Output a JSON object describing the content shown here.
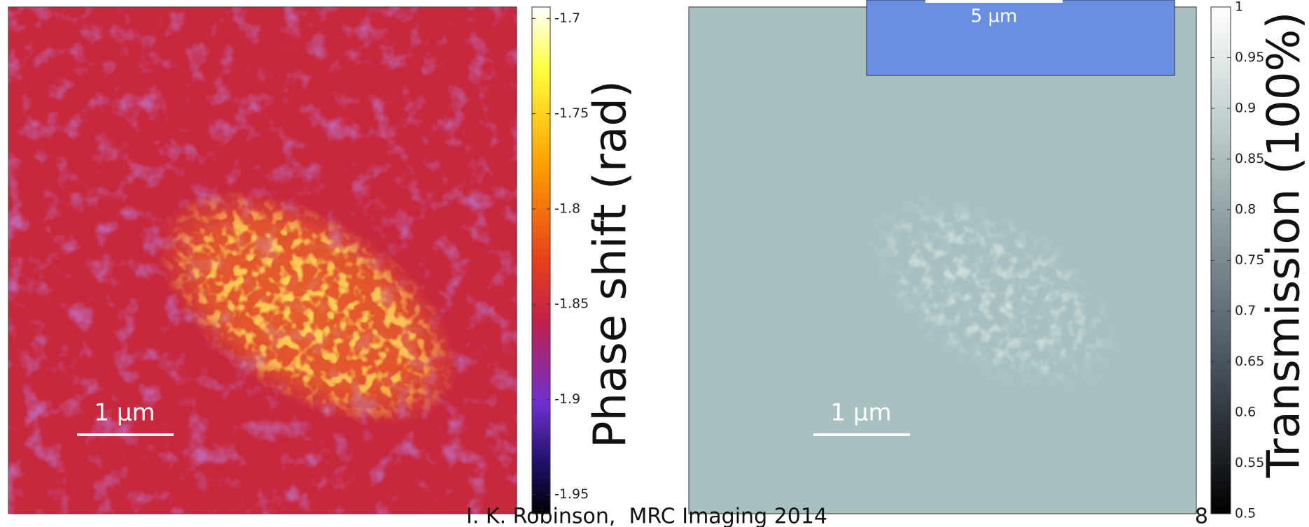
{
  "left_panel": {
    "scale_bar": "1 µm",
    "colorbar": {
      "label": "Phase shift (rad)",
      "lim": [
        -1.96,
        -1.694
      ],
      "ticks": [
        -1.7,
        -1.75,
        -1.8,
        -1.85,
        -1.9,
        -1.95
      ]
    }
  },
  "right_panel": {
    "scale_bar": "1 µm",
    "inset_scale_bar": "5 µm",
    "colorbar": {
      "label": "Transmission (100%)",
      "lim": [
        0.5,
        1
      ],
      "ticks": [
        1,
        0.95,
        0.9,
        0.85,
        0.8,
        0.75,
        0.7,
        0.65,
        0.6,
        0.55,
        0.5
      ]
    }
  },
  "footer": {
    "text": "I. K. Robinson,  MRC Imaging 2014",
    "page": "8"
  }
}
